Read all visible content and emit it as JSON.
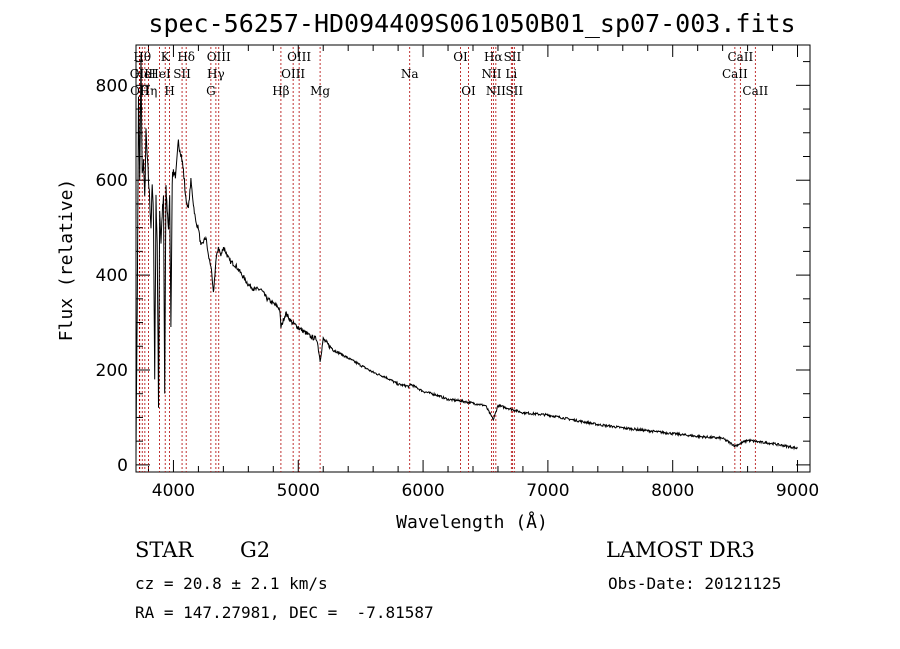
{
  "chart_data": {
    "type": "line",
    "title": "spec-56257-HD094409S061050B01_sp07-003.fits",
    "xlabel": "Wavelength (Å)",
    "ylabel": "Flux (relative)",
    "xlim": [
      3700,
      9100
    ],
    "ylim": [
      -15,
      885
    ],
    "xticks": [
      4000,
      5000,
      6000,
      7000,
      8000,
      9000
    ],
    "yticks": [
      0,
      200,
      400,
      600,
      800
    ],
    "series": [
      {
        "name": "flux",
        "x": [
          3700,
          3710,
          3720,
          3730,
          3740,
          3750,
          3760,
          3770,
          3780,
          3790,
          3800,
          3810,
          3820,
          3830,
          3840,
          3850,
          3860,
          3870,
          3880,
          3890,
          3900,
          3910,
          3920,
          3930,
          3940,
          3950,
          3960,
          3970,
          3980,
          3990,
          4000,
          4020,
          4040,
          4060,
          4080,
          4100,
          4120,
          4140,
          4160,
          4180,
          4200,
          4220,
          4240,
          4260,
          4280,
          4300,
          4320,
          4340,
          4360,
          4380,
          4400,
          4450,
          4500,
          4550,
          4600,
          4650,
          4700,
          4750,
          4800,
          4850,
          4861,
          4900,
          4950,
          5000,
          5050,
          5100,
          5150,
          5175,
          5200,
          5250,
          5300,
          5400,
          5500,
          5600,
          5700,
          5800,
          5890,
          5900,
          6000,
          6100,
          6200,
          6300,
          6400,
          6500,
          6563,
          6600,
          6700,
          6800,
          7000,
          7200,
          7400,
          7600,
          7800,
          8000,
          8200,
          8400,
          8500,
          8600,
          8700,
          8800,
          8900,
          9000
        ],
        "values": [
          30,
          330,
          780,
          600,
          860,
          610,
          640,
          560,
          700,
          650,
          600,
          560,
          500,
          590,
          520,
          180,
          560,
          470,
          120,
          540,
          470,
          530,
          560,
          150,
          580,
          540,
          500,
          560,
          300,
          600,
          620,
          610,
          680,
          660,
          620,
          560,
          540,
          600,
          550,
          510,
          500,
          460,
          470,
          480,
          440,
          420,
          360,
          430,
          460,
          440,
          460,
          430,
          420,
          400,
          380,
          370,
          370,
          350,
          340,
          330,
          290,
          320,
          300,
          290,
          280,
          270,
          265,
          220,
          265,
          250,
          240,
          225,
          210,
          195,
          185,
          170,
          165,
          170,
          155,
          148,
          138,
          135,
          130,
          125,
          95,
          125,
          118,
          110,
          105,
          95,
          85,
          78,
          72,
          66,
          60,
          56,
          40,
          52,
          48,
          45,
          40,
          35
        ]
      }
    ],
    "lines": [
      {
        "wl": 3727,
        "label": "OII",
        "row": 1
      },
      {
        "wl": 3730,
        "label": "OII",
        "row": 2
      },
      {
        "wl": 3750,
        "label": "Hθ",
        "row": 0
      },
      {
        "wl": 3771,
        "label": "HeI",
        "row": 1
      },
      {
        "wl": 3800,
        "label": "Hη",
        "row": 2
      },
      {
        "wl": 3889,
        "label": "HeI",
        "row": 1
      },
      {
        "wl": 3934,
        "label": "K",
        "row": 0
      },
      {
        "wl": 3969,
        "label": "H",
        "row": 2
      },
      {
        "wl": 4069,
        "label": "SII",
        "row": 1
      },
      {
        "wl": 4102,
        "label": "Hδ",
        "row": 0
      },
      {
        "wl": 4300,
        "label": "G",
        "row": 2
      },
      {
        "wl": 4340,
        "label": "Hγ",
        "row": 1
      },
      {
        "wl": 4363,
        "label": "OIII",
        "row": 0
      },
      {
        "wl": 4861,
        "label": "Hβ",
        "row": 2
      },
      {
        "wl": 4959,
        "label": "OIII",
        "row": 1
      },
      {
        "wl": 5007,
        "label": "OIII",
        "row": 0
      },
      {
        "wl": 5175,
        "label": "Mg",
        "row": 2
      },
      {
        "wl": 5893,
        "label": "Na",
        "row": 1
      },
      {
        "wl": 6300,
        "label": "OI",
        "row": 0
      },
      {
        "wl": 6364,
        "label": "OI",
        "row": 2
      },
      {
        "wl": 6548,
        "label": "NII",
        "row": 1
      },
      {
        "wl": 6563,
        "label": "Hα",
        "row": 0
      },
      {
        "wl": 6583,
        "label": "NII",
        "row": 2
      },
      {
        "wl": 6707,
        "label": "Li",
        "row": 1
      },
      {
        "wl": 6716,
        "label": "SII",
        "row": 0
      },
      {
        "wl": 6731,
        "label": "SII",
        "row": 2
      },
      {
        "wl": 8498,
        "label": "CaII",
        "row": 1
      },
      {
        "wl": 8542,
        "label": "CaII",
        "row": 0
      },
      {
        "wl": 8662,
        "label": "CaII",
        "row": 2
      }
    ]
  },
  "info": {
    "object_class": "STAR",
    "subclass": "G2",
    "survey": "LAMOST DR3",
    "redshift": "cz = 20.8 ± 2.1 km/s",
    "obs_date": "Obs-Date: 20121125",
    "coords": "RA = 147.27981, DEC =  -7.81587"
  }
}
